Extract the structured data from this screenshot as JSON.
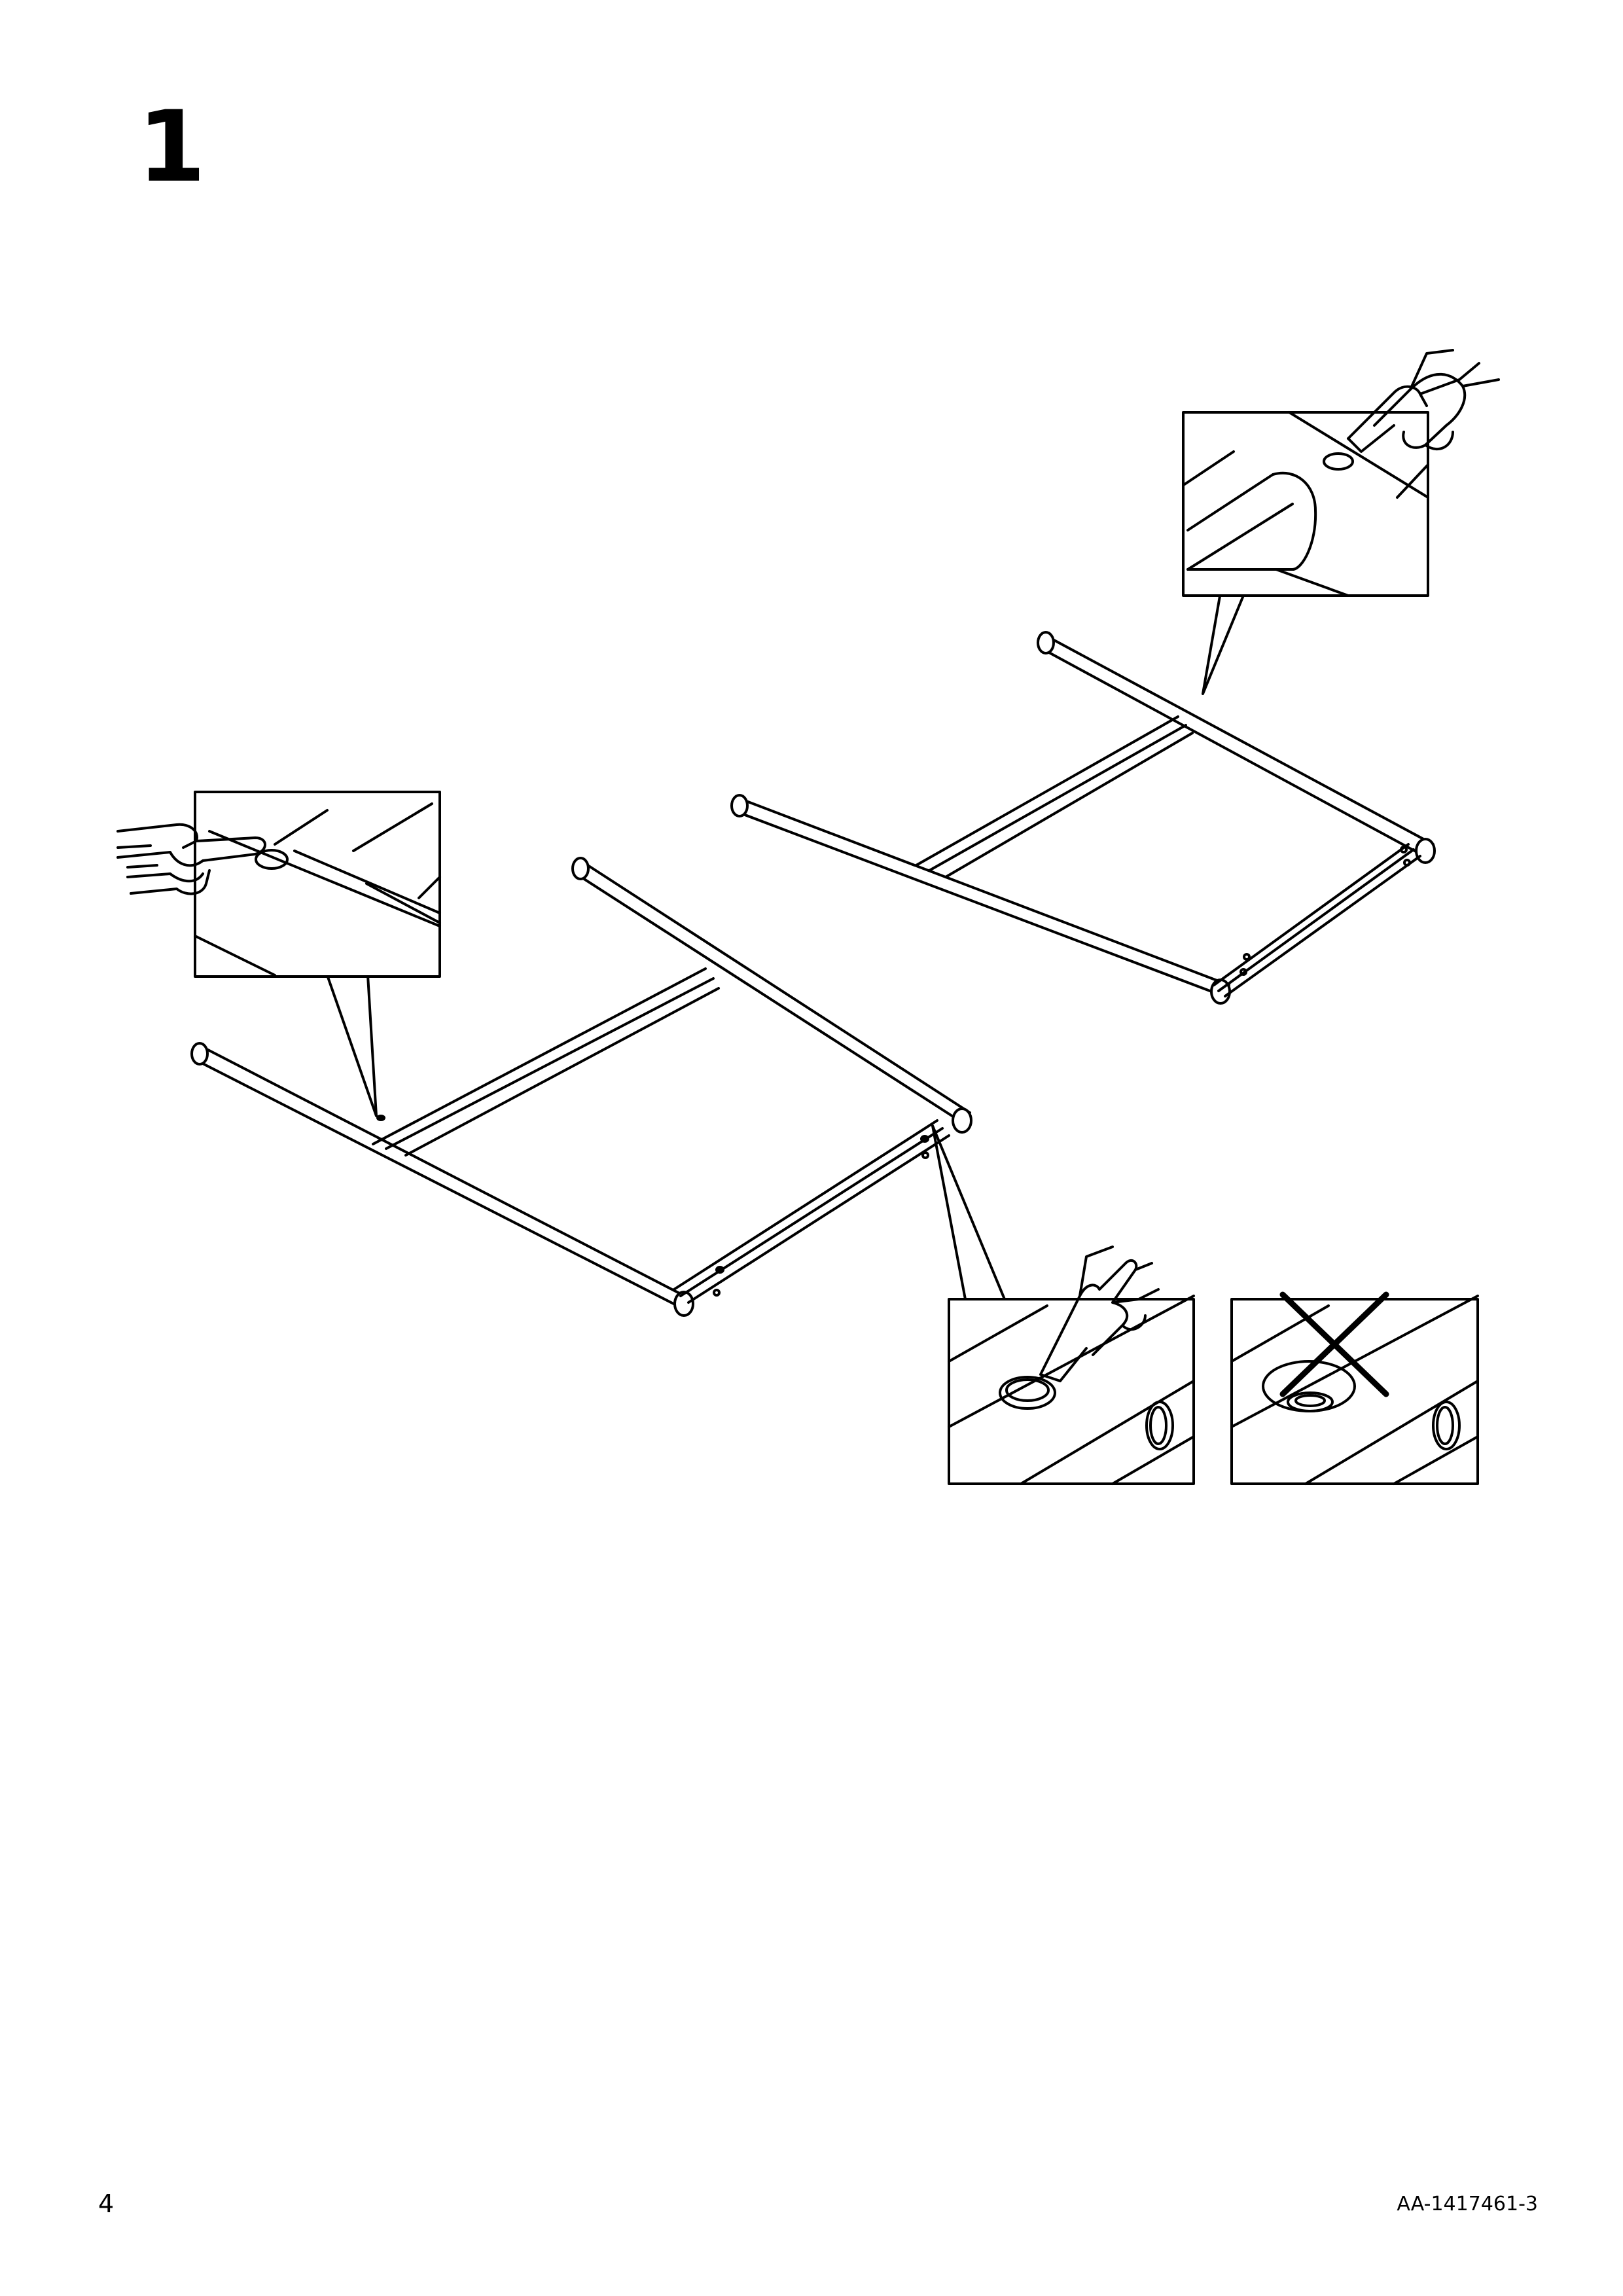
{
  "step": {
    "number": "1"
  },
  "footer": {
    "page_number": "4",
    "document_code": "AA-1417461-3"
  },
  "icons": {
    "hand_point": "hand-pointing-icon",
    "wrong_mark": "cross-x-icon"
  },
  "colors": {
    "ink": "#000000",
    "paper": "#ffffff"
  }
}
